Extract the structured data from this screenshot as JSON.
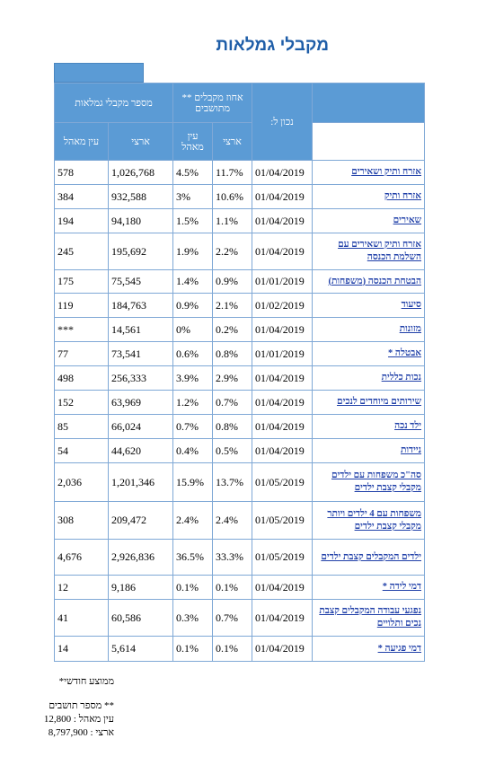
{
  "header": {
    "title": "מקבלי גמלאות"
  },
  "table": {
    "columns": {
      "name_date": "נכון ל:",
      "percent_group": "אחוז מקבלים ** מתושבים",
      "count_group": "מספר מקבלי גמלאות",
      "national": "ארצי",
      "local": "עין מאהל"
    },
    "rows": [
      [
        "אזרח ותיק ושאירים",
        "01/04/2019",
        "11.7%",
        "4.5%",
        "1,026,768",
        "578"
      ],
      [
        "אזרח ותיק",
        "01/04/2019",
        "10.6%",
        "3%",
        "932,588",
        "384"
      ],
      [
        "שאירים",
        "01/04/2019",
        "1.1%",
        "1.5%",
        "94,180",
        "194"
      ],
      [
        "אזרח ותיק ושאירים עם השלמת הכנסה",
        "01/04/2019",
        "2.2%",
        "1.9%",
        "195,692",
        "245"
      ],
      [
        "הבטחת הכנסה (משפחות)",
        "01/01/2019",
        "0.9%",
        "1.4%",
        "75,545",
        "175"
      ],
      [
        "סיעוד",
        "01/02/2019",
        "2.1%",
        "0.9%",
        "184,763",
        "119"
      ],
      [
        "מזונות",
        "01/04/2019",
        "0.2%",
        "0%",
        "14,561",
        "***"
      ],
      [
        "אבטלה *",
        "01/01/2019",
        "0.8%",
        "0.6%",
        "73,541",
        "77"
      ],
      [
        "נכות כללית",
        "01/04/2019",
        "2.9%",
        "3.9%",
        "256,333",
        "498"
      ],
      [
        "שירותים מיוחדים לנכים",
        "01/04/2019",
        "0.7%",
        "1.2%",
        "63,969",
        "152"
      ],
      [
        "ילד נכה",
        "01/04/2019",
        "0.8%",
        "0.7%",
        "66,024",
        "85"
      ],
      [
        "ניידות",
        "01/04/2019",
        "0.5%",
        "0.4%",
        "44,620",
        "54"
      ],
      [
        "סה\"כ משפחות עם ילדים מקבלי קצבת ילדים",
        "01/05/2019",
        "13.7%",
        "15.9%",
        "1,201,346",
        "2,036"
      ],
      [
        "משפחות עם 4 ילדים ויותר מקבלי קצבת ילדים",
        "01/05/2019",
        "2.4%",
        "2.4%",
        "209,472",
        "308"
      ],
      [
        "ילדים המקבלים קצבת ילדים",
        "01/05/2019",
        "33.3%",
        "36.5%",
        "2,926,836",
        "4,676"
      ],
      [
        "דמי לידה *",
        "01/04/2019",
        "0.1%",
        "0.1%",
        "9,186",
        "12"
      ],
      [
        "נפגעי עבודה המקבלים קצבת נכים ותלויים",
        "01/04/2019",
        "0.7%",
        "0.3%",
        "60,586",
        "41"
      ],
      [
        "דמי פגיעה *",
        "01/04/2019",
        "0.1%",
        "0.1%",
        "5,614",
        "14"
      ]
    ]
  },
  "notes": {
    "monthly": "ממוצע חודשי*",
    "residents": "** מספר תושבים",
    "local_residents": "עין מאהל : 12,800",
    "national_residents": "ארצי : 8,797,900"
  }
}
